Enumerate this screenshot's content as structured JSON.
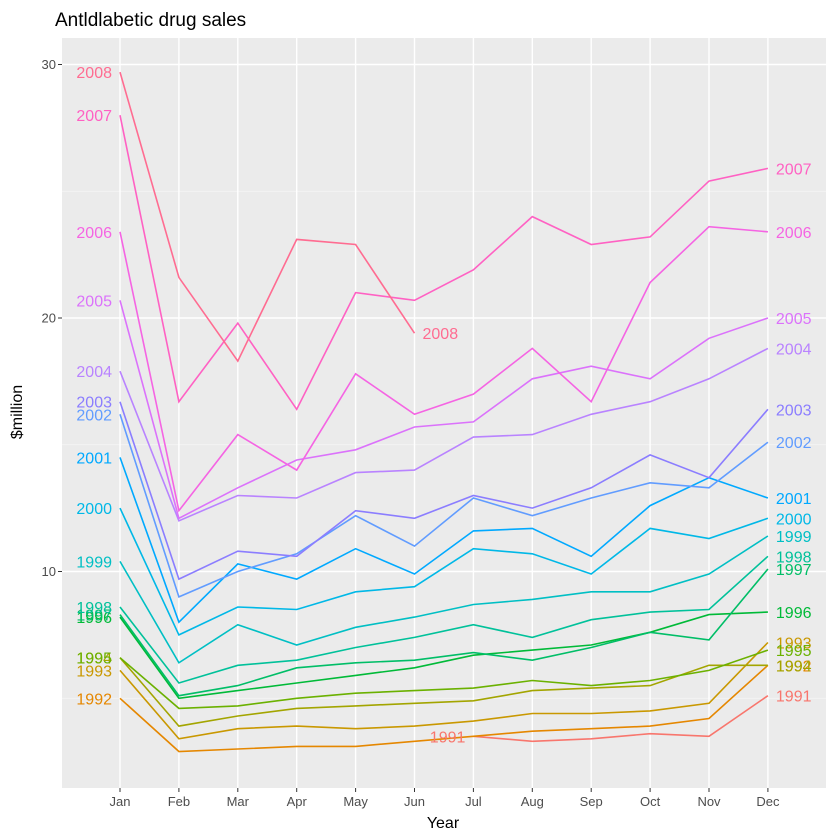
{
  "chart_data": {
    "type": "line",
    "title": "Antldlabetic drug sales",
    "xlabel": "Year",
    "ylabel": "$million",
    "categories": [
      "Jan",
      "Feb",
      "Mar",
      "Apr",
      "May",
      "Jun",
      "Jul",
      "Aug",
      "Sep",
      "Oct",
      "Nov",
      "Dec"
    ],
    "yticks": [
      10,
      20,
      30
    ],
    "ylim": [
      2.2,
      31.2
    ],
    "grid": true,
    "legend": "none",
    "series": [
      {
        "name": "1991",
        "color": "#F8766D",
        "values": [
          null,
          null,
          null,
          null,
          null,
          null,
          3.5,
          3.3,
          3.4,
          3.6,
          3.5,
          5.1
        ]
      },
      {
        "name": "1992",
        "color": "#E58700",
        "values": [
          5.0,
          2.9,
          3.0,
          3.1,
          3.1,
          3.3,
          3.5,
          3.7,
          3.8,
          3.9,
          4.2,
          6.3
        ]
      },
      {
        "name": "1993",
        "color": "#C99800",
        "values": [
          6.1,
          3.4,
          3.8,
          3.9,
          3.8,
          3.9,
          4.1,
          4.4,
          4.4,
          4.5,
          4.8,
          7.2
        ]
      },
      {
        "name": "1994",
        "color": "#A3A500",
        "values": [
          6.6,
          3.9,
          4.3,
          4.6,
          4.7,
          4.8,
          4.9,
          5.3,
          5.4,
          5.5,
          6.3,
          6.3
        ]
      },
      {
        "name": "1995",
        "color": "#6BB100",
        "values": [
          6.6,
          4.6,
          4.7,
          5.0,
          5.2,
          5.3,
          5.4,
          5.7,
          5.5,
          5.7,
          6.1,
          6.9
        ]
      },
      {
        "name": "1996",
        "color": "#00BA38",
        "values": [
          8.2,
          5.0,
          5.3,
          5.6,
          5.9,
          6.2,
          6.7,
          6.9,
          7.1,
          7.6,
          8.3,
          8.4
        ]
      },
      {
        "name": "1997",
        "color": "#00BE67",
        "values": [
          8.3,
          5.1,
          5.5,
          6.2,
          6.4,
          6.5,
          6.8,
          6.5,
          7.0,
          7.6,
          7.3,
          10.1
        ]
      },
      {
        "name": "1998",
        "color": "#00C19A",
        "values": [
          8.6,
          5.6,
          6.3,
          6.5,
          7.0,
          7.4,
          7.9,
          7.4,
          8.1,
          8.4,
          8.5,
          10.6
        ]
      },
      {
        "name": "1999",
        "color": "#00BFC4",
        "values": [
          10.4,
          6.4,
          7.9,
          7.1,
          7.8,
          8.2,
          8.7,
          8.9,
          9.2,
          9.2,
          9.9,
          11.4
        ]
      },
      {
        "name": "2000",
        "color": "#00B8E7",
        "values": [
          12.5,
          7.5,
          8.6,
          8.5,
          9.2,
          9.4,
          10.9,
          10.7,
          9.9,
          11.7,
          11.3,
          12.1
        ]
      },
      {
        "name": "2001",
        "color": "#00A9FF",
        "values": [
          14.5,
          8.0,
          10.3,
          9.7,
          10.9,
          9.9,
          11.6,
          11.7,
          10.6,
          12.6,
          13.7,
          12.9
        ]
      },
      {
        "name": "2002",
        "color": "#619CFF",
        "values": [
          16.2,
          9.0,
          10.0,
          10.7,
          12.2,
          11.0,
          12.9,
          12.2,
          12.9,
          13.5,
          13.3,
          15.1
        ]
      },
      {
        "name": "2003",
        "color": "#8B7DFF",
        "values": [
          16.7,
          9.7,
          10.8,
          10.6,
          12.4,
          12.1,
          13.0,
          12.5,
          13.3,
          14.6,
          13.7,
          16.4
        ]
      },
      {
        "name": "2004",
        "color": "#B983FF",
        "values": [
          17.9,
          12.0,
          13.0,
          12.9,
          13.9,
          14.0,
          15.3,
          15.4,
          16.2,
          16.7,
          17.6,
          18.8
        ]
      },
      {
        "name": "2005",
        "color": "#DB72FB",
        "values": [
          20.7,
          12.1,
          13.3,
          14.4,
          14.8,
          15.7,
          15.9,
          17.6,
          18.1,
          17.6,
          19.2,
          20.0
        ]
      },
      {
        "name": "2006",
        "color": "#F564E3",
        "values": [
          23.4,
          12.4,
          15.4,
          14.0,
          17.8,
          16.2,
          17.0,
          18.8,
          16.7,
          21.4,
          23.6,
          23.4
        ]
      },
      {
        "name": "2007",
        "color": "#FF61C3",
        "values": [
          28.0,
          16.7,
          19.8,
          16.4,
          21.0,
          20.7,
          21.9,
          24.0,
          22.9,
          23.2,
          25.4,
          25.9
        ]
      },
      {
        "name": "2008",
        "color": "#FF6C91",
        "values": [
          29.7,
          21.6,
          18.3,
          23.1,
          22.9,
          19.4,
          null,
          null,
          null,
          null,
          null,
          null
        ]
      }
    ]
  }
}
